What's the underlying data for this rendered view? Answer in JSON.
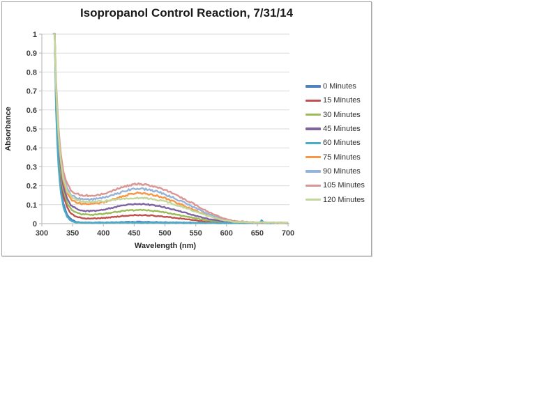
{
  "chart_data": {
    "type": "line",
    "title": "Isopropanol Control Reaction, 7/31/14",
    "xlabel": "Wavelength (nm)",
    "ylabel": "Absorbance",
    "xlim": [
      300,
      700
    ],
    "ylim": [
      0,
      1
    ],
    "grid": "horizontal-major",
    "legend_position": "right",
    "x_ticks": [
      300,
      350,
      400,
      450,
      500,
      550,
      600,
      650,
      700
    ],
    "y_tick_labels": [
      "0",
      "0.1",
      "0.2",
      "0.3",
      "0.4",
      "0.5",
      "0.6",
      "0.7",
      "0.8",
      "0.9",
      "1"
    ],
    "series": [
      {
        "name": "0 Minutes",
        "color": "#4F81BD",
        "points": [
          [
            319,
            1.02
          ],
          [
            321,
            1.0
          ],
          [
            323,
            0.62
          ],
          [
            326,
            0.38
          ],
          [
            330,
            0.21
          ],
          [
            335,
            0.105
          ],
          [
            341,
            0.048
          ],
          [
            348,
            0.02
          ],
          [
            356,
            0.009
          ],
          [
            365,
            0.006
          ],
          [
            380,
            0.005
          ],
          [
            400,
            0.006
          ],
          [
            430,
            0.008
          ],
          [
            455,
            0.01
          ],
          [
            480,
            0.008
          ],
          [
            510,
            0.006
          ],
          [
            550,
            0.004
          ],
          [
            600,
            0.003
          ],
          [
            640,
            0.003
          ],
          [
            650,
            0.004
          ],
          [
            654,
            0.005
          ],
          [
            657,
            0.02
          ],
          [
            660,
            0.004
          ],
          [
            680,
            0.003
          ],
          [
            700,
            0.003
          ]
        ]
      },
      {
        "name": "15 Minutes",
        "color": "#C0504D",
        "points": [
          [
            319,
            1.02
          ],
          [
            321,
            1.0
          ],
          [
            323,
            0.66
          ],
          [
            326,
            0.43
          ],
          [
            330,
            0.26
          ],
          [
            335,
            0.15
          ],
          [
            341,
            0.085
          ],
          [
            348,
            0.052
          ],
          [
            356,
            0.037
          ],
          [
            365,
            0.03
          ],
          [
            375,
            0.027
          ],
          [
            385,
            0.027
          ],
          [
            400,
            0.03
          ],
          [
            420,
            0.036
          ],
          [
            440,
            0.043
          ],
          [
            455,
            0.045
          ],
          [
            470,
            0.044
          ],
          [
            490,
            0.04
          ],
          [
            510,
            0.033
          ],
          [
            530,
            0.025
          ],
          [
            550,
            0.017
          ],
          [
            570,
            0.011
          ],
          [
            590,
            0.006
          ],
          [
            610,
            0.004
          ],
          [
            650,
            0.003
          ],
          [
            700,
            0.003
          ]
        ]
      },
      {
        "name": "30 Minutes",
        "color": "#9BBB59",
        "points": [
          [
            319,
            1.02
          ],
          [
            321,
            1.0
          ],
          [
            323,
            0.68
          ],
          [
            326,
            0.46
          ],
          [
            330,
            0.29
          ],
          [
            335,
            0.175
          ],
          [
            341,
            0.11
          ],
          [
            348,
            0.075
          ],
          [
            356,
            0.058
          ],
          [
            365,
            0.05
          ],
          [
            375,
            0.047
          ],
          [
            385,
            0.047
          ],
          [
            400,
            0.052
          ],
          [
            420,
            0.061
          ],
          [
            440,
            0.07
          ],
          [
            455,
            0.072
          ],
          [
            470,
            0.07
          ],
          [
            490,
            0.064
          ],
          [
            510,
            0.053
          ],
          [
            530,
            0.04
          ],
          [
            550,
            0.028
          ],
          [
            570,
            0.017
          ],
          [
            590,
            0.009
          ],
          [
            610,
            0.005
          ],
          [
            650,
            0.004
          ],
          [
            700,
            0.004
          ]
        ]
      },
      {
        "name": "45 Minutes",
        "color": "#8064A2",
        "points": [
          [
            319,
            1.02
          ],
          [
            321,
            1.0
          ],
          [
            323,
            0.7
          ],
          [
            326,
            0.48
          ],
          [
            330,
            0.31
          ],
          [
            335,
            0.195
          ],
          [
            341,
            0.13
          ],
          [
            348,
            0.095
          ],
          [
            356,
            0.078
          ],
          [
            365,
            0.069
          ],
          [
            375,
            0.066
          ],
          [
            385,
            0.066
          ],
          [
            400,
            0.073
          ],
          [
            420,
            0.087
          ],
          [
            440,
            0.101
          ],
          [
            455,
            0.105
          ],
          [
            470,
            0.102
          ],
          [
            490,
            0.093
          ],
          [
            510,
            0.078
          ],
          [
            530,
            0.06
          ],
          [
            550,
            0.042
          ],
          [
            570,
            0.026
          ],
          [
            590,
            0.013
          ],
          [
            610,
            0.007
          ],
          [
            650,
            0.004
          ],
          [
            700,
            0.004
          ]
        ]
      },
      {
        "name": "60 Minutes",
        "color": "#4BACC6",
        "points": [
          [
            319,
            1.02
          ],
          [
            321,
            1.0
          ],
          [
            323,
            0.6
          ],
          [
            326,
            0.35
          ],
          [
            330,
            0.18
          ],
          [
            335,
            0.085
          ],
          [
            341,
            0.035
          ],
          [
            348,
            0.013
          ],
          [
            356,
            0.006
          ],
          [
            380,
            0.004
          ],
          [
            450,
            0.005
          ],
          [
            550,
            0.003
          ],
          [
            640,
            0.003
          ],
          [
            650,
            0.003
          ],
          [
            654,
            0.004
          ],
          [
            657,
            0.016
          ],
          [
            660,
            0.003
          ],
          [
            700,
            0.003
          ]
        ]
      },
      {
        "name": "75 Minutes",
        "color": "#F79646",
        "points": [
          [
            319,
            1.02
          ],
          [
            321,
            1.0
          ],
          [
            323,
            0.72
          ],
          [
            326,
            0.51
          ],
          [
            330,
            0.34
          ],
          [
            335,
            0.225
          ],
          [
            341,
            0.16
          ],
          [
            348,
            0.126
          ],
          [
            356,
            0.111
          ],
          [
            365,
            0.105
          ],
          [
            375,
            0.103
          ],
          [
            385,
            0.104
          ],
          [
            400,
            0.112
          ],
          [
            420,
            0.131
          ],
          [
            440,
            0.153
          ],
          [
            455,
            0.162
          ],
          [
            470,
            0.158
          ],
          [
            490,
            0.145
          ],
          [
            510,
            0.122
          ],
          [
            530,
            0.096
          ],
          [
            550,
            0.068
          ],
          [
            570,
            0.042
          ],
          [
            590,
            0.022
          ],
          [
            610,
            0.01
          ],
          [
            650,
            0.005
          ],
          [
            700,
            0.004
          ]
        ]
      },
      {
        "name": "90 Minutes",
        "color": "#95B3D7",
        "points": [
          [
            319,
            1.02
          ],
          [
            321,
            1.0
          ],
          [
            323,
            0.74
          ],
          [
            326,
            0.53
          ],
          [
            330,
            0.36
          ],
          [
            335,
            0.25
          ],
          [
            341,
            0.185
          ],
          [
            348,
            0.151
          ],
          [
            356,
            0.136
          ],
          [
            365,
            0.13
          ],
          [
            375,
            0.128
          ],
          [
            385,
            0.129
          ],
          [
            400,
            0.137
          ],
          [
            420,
            0.156
          ],
          [
            440,
            0.177
          ],
          [
            455,
            0.185
          ],
          [
            470,
            0.181
          ],
          [
            490,
            0.167
          ],
          [
            510,
            0.142
          ],
          [
            530,
            0.113
          ],
          [
            550,
            0.081
          ],
          [
            570,
            0.051
          ],
          [
            590,
            0.027
          ],
          [
            610,
            0.012
          ],
          [
            650,
            0.005
          ],
          [
            700,
            0.005
          ]
        ]
      },
      {
        "name": "105 Minutes",
        "color": "#D99694",
        "points": [
          [
            319,
            1.02
          ],
          [
            321,
            1.0
          ],
          [
            323,
            0.76
          ],
          [
            326,
            0.56
          ],
          [
            330,
            0.39
          ],
          [
            335,
            0.275
          ],
          [
            341,
            0.21
          ],
          [
            348,
            0.173
          ],
          [
            356,
            0.157
          ],
          [
            365,
            0.15
          ],
          [
            375,
            0.148
          ],
          [
            385,
            0.149
          ],
          [
            400,
            0.158
          ],
          [
            420,
            0.179
          ],
          [
            440,
            0.201
          ],
          [
            455,
            0.21
          ],
          [
            470,
            0.205
          ],
          [
            490,
            0.19
          ],
          [
            510,
            0.164
          ],
          [
            530,
            0.132
          ],
          [
            550,
            0.098
          ],
          [
            570,
            0.063
          ],
          [
            590,
            0.034
          ],
          [
            610,
            0.015
          ],
          [
            650,
            0.006
          ],
          [
            700,
            0.005
          ]
        ]
      },
      {
        "name": "120 Minutes",
        "color": "#C3D69B",
        "points": [
          [
            319,
            1.02
          ],
          [
            321,
            1.0
          ],
          [
            323,
            0.73
          ],
          [
            326,
            0.52
          ],
          [
            330,
            0.35
          ],
          [
            335,
            0.235
          ],
          [
            341,
            0.172
          ],
          [
            348,
            0.14
          ],
          [
            356,
            0.124
          ],
          [
            365,
            0.117
          ],
          [
            375,
            0.114
          ],
          [
            385,
            0.115
          ],
          [
            400,
            0.119
          ],
          [
            420,
            0.127
          ],
          [
            440,
            0.133
          ],
          [
            455,
            0.135
          ],
          [
            470,
            0.133
          ],
          [
            490,
            0.125
          ],
          [
            510,
            0.108
          ],
          [
            530,
            0.086
          ],
          [
            550,
            0.063
          ],
          [
            570,
            0.041
          ],
          [
            590,
            0.022
          ],
          [
            610,
            0.011
          ],
          [
            650,
            0.006
          ],
          [
            700,
            0.005
          ]
        ]
      }
    ],
    "colors": {
      "gridline": "#D9D9D9",
      "axis_line": "#BFBFBF",
      "tick_label": "#3f3f3f"
    }
  }
}
